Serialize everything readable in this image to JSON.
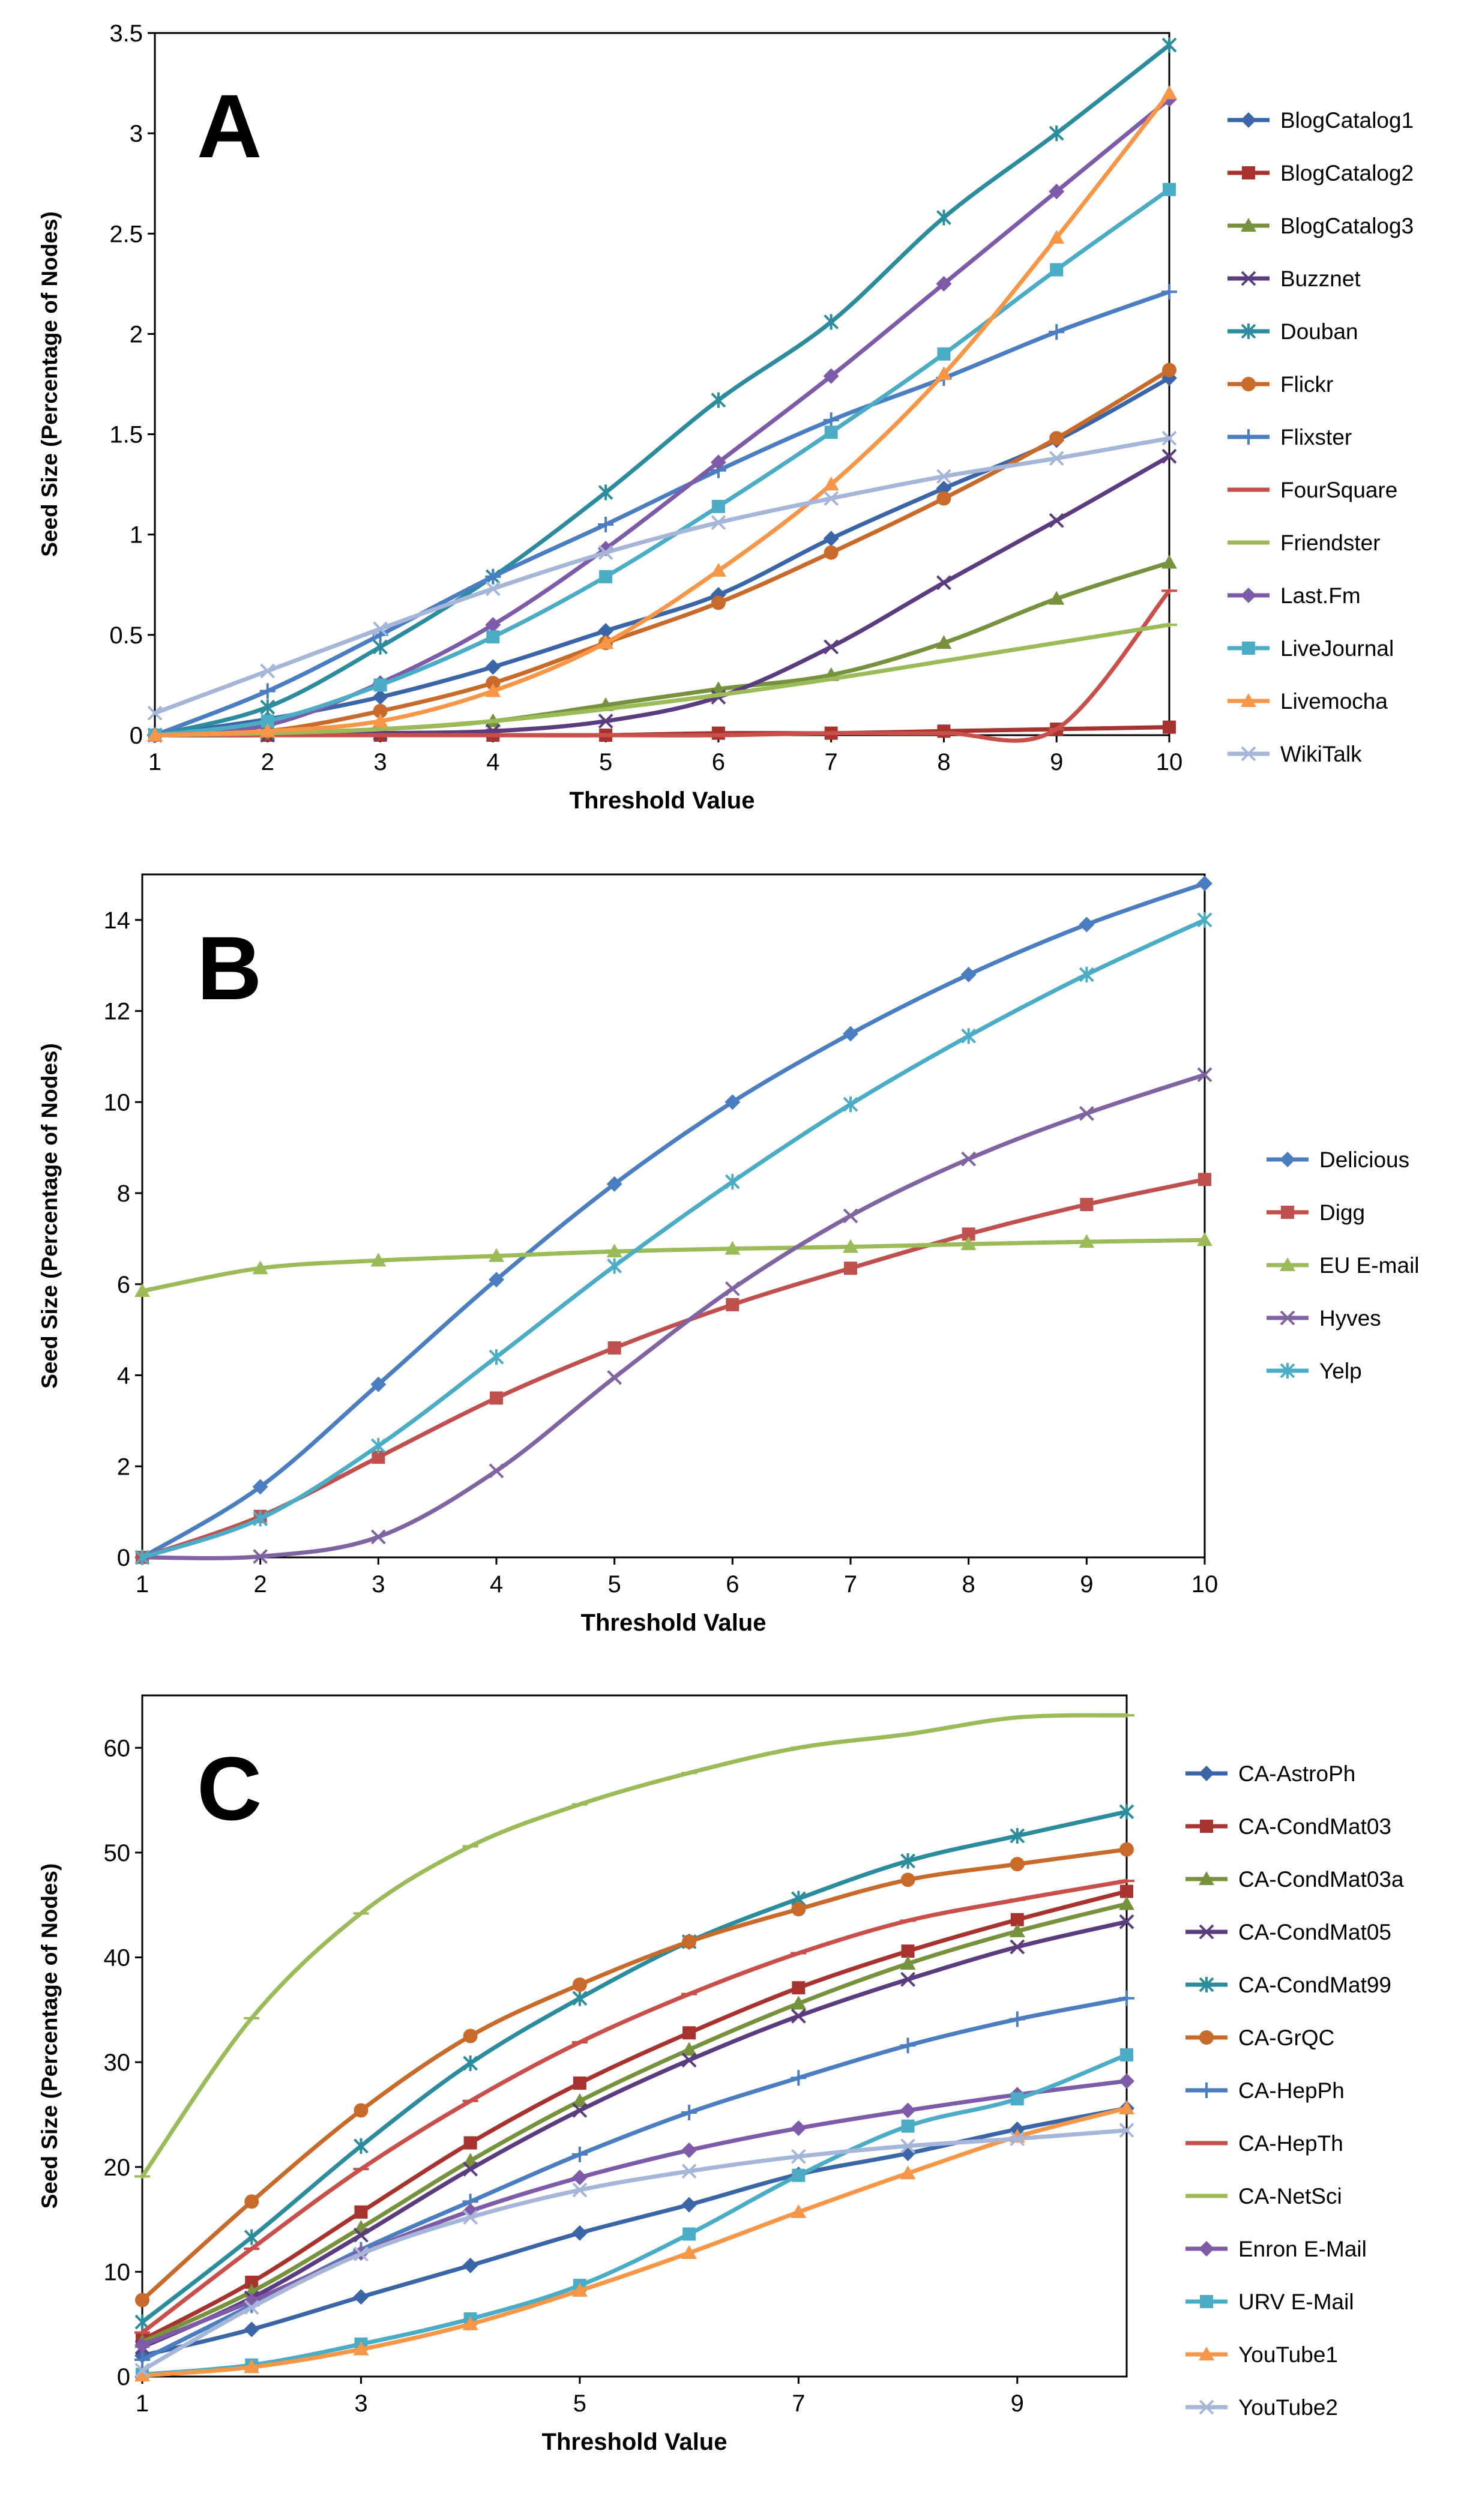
{
  "chart_data": [
    {
      "panel_label": "A",
      "type": "line",
      "title": "",
      "xlabel": "Threshold Value",
      "ylabel": "Seed Size (Percentage of Nodes)",
      "x": [
        1,
        2,
        3,
        4,
        5,
        6,
        7,
        8,
        9,
        10
      ],
      "xticks": [
        "1",
        "2",
        "3",
        "4",
        "5",
        "6",
        "7",
        "8",
        "9",
        "10"
      ],
      "ylim": [
        0,
        3.5
      ],
      "yticks": [
        "0",
        "0.5",
        "1",
        "1.5",
        "2",
        "2.5",
        "3",
        "3.5"
      ],
      "legend_position": "right",
      "series": [
        {
          "name": "BlogCatalog1",
          "color": "#3A66A8",
          "marker": "diamond",
          "values": [
            0,
            0.08,
            0.19,
            0.34,
            0.52,
            0.7,
            0.98,
            1.23,
            1.47,
            1.78
          ]
        },
        {
          "name": "BlogCatalog2",
          "color": "#A8322E",
          "marker": "square",
          "values": [
            0,
            0,
            0,
            0,
            0,
            0.01,
            0.01,
            0.02,
            0.03,
            0.04
          ]
        },
        {
          "name": "BlogCatalog3",
          "color": "#77923C",
          "marker": "triangle",
          "values": [
            0,
            0.01,
            0.03,
            0.07,
            0.15,
            0.23,
            0.3,
            0.46,
            0.68,
            0.86
          ]
        },
        {
          "name": "Buzznet",
          "color": "#5B3D7F",
          "marker": "x",
          "values": [
            0,
            0,
            0.01,
            0.02,
            0.07,
            0.19,
            0.44,
            0.76,
            1.07,
            1.39
          ]
        },
        {
          "name": "Douban",
          "color": "#2A8C9C",
          "marker": "star",
          "values": [
            0,
            0.14,
            0.44,
            0.79,
            1.21,
            1.67,
            2.06,
            2.58,
            3.0,
            3.44
          ]
        },
        {
          "name": "Flickr",
          "color": "#C86B2A",
          "marker": "circle",
          "values": [
            0,
            0.02,
            0.12,
            0.26,
            0.46,
            0.66,
            0.91,
            1.18,
            1.48,
            1.82
          ]
        },
        {
          "name": "Flixster",
          "color": "#4A7EC0",
          "marker": "plus",
          "values": [
            0,
            0.22,
            0.5,
            0.79,
            1.05,
            1.32,
            1.57,
            1.78,
            2.01,
            2.21
          ]
        },
        {
          "name": "FourSquare",
          "color": "#C94F4B",
          "marker": "dash",
          "values": [
            0,
            0,
            0,
            0,
            0,
            0,
            0.01,
            0.01,
            0.03,
            0.72
          ]
        },
        {
          "name": "Friendster",
          "color": "#9BBB59",
          "marker": "dash",
          "values": [
            0,
            0.01,
            0.03,
            0.07,
            0.13,
            0.2,
            0.28,
            0.37,
            0.46,
            0.55
          ]
        },
        {
          "name": "Last.Fm",
          "color": "#7E5BA8",
          "marker": "diamond",
          "values": [
            0,
            0.05,
            0.26,
            0.55,
            0.93,
            1.36,
            1.79,
            2.25,
            2.71,
            3.17
          ]
        },
        {
          "name": "LiveJournal",
          "color": "#4BACC6",
          "marker": "square",
          "values": [
            0,
            0.07,
            0.25,
            0.49,
            0.79,
            1.14,
            1.51,
            1.9,
            2.32,
            2.72
          ]
        },
        {
          "name": "Livemocha",
          "color": "#F79646",
          "marker": "triangle",
          "values": [
            0,
            0.02,
            0.07,
            0.22,
            0.46,
            0.82,
            1.25,
            1.8,
            2.48,
            3.2
          ]
        },
        {
          "name": "WikiTalk",
          "color": "#A6B6D8",
          "marker": "x",
          "values": [
            0.11,
            0.32,
            0.53,
            0.73,
            0.91,
            1.06,
            1.18,
            1.29,
            1.38,
            1.48
          ]
        }
      ]
    },
    {
      "panel_label": "B",
      "type": "line",
      "title": "",
      "xlabel": "Threshold Value",
      "ylabel": "Seed Size (Percentage of Nodes)",
      "x": [
        1,
        2,
        3,
        4,
        5,
        6,
        7,
        8,
        9,
        10
      ],
      "xticks": [
        "1",
        "2",
        "3",
        "4",
        "5",
        "6",
        "7",
        "8",
        "9",
        "10"
      ],
      "ylim": [
        0,
        15
      ],
      "yticks": [
        "0",
        "2",
        "4",
        "6",
        "8",
        "10",
        "12",
        "14"
      ],
      "legend_position": "right",
      "series": [
        {
          "name": "Delicious",
          "color": "#4A7EC0",
          "marker": "diamond",
          "values": [
            0,
            1.55,
            3.8,
            6.1,
            8.2,
            10.0,
            11.5,
            12.8,
            13.9,
            14.8
          ]
        },
        {
          "name": "Digg",
          "color": "#C0504D",
          "marker": "square",
          "values": [
            0,
            0.9,
            2.2,
            3.5,
            4.6,
            5.55,
            6.35,
            7.1,
            7.75,
            8.3
          ]
        },
        {
          "name": "EU E-mail",
          "color": "#9BBB59",
          "marker": "triangle",
          "values": [
            5.85,
            6.35,
            6.52,
            6.62,
            6.72,
            6.78,
            6.82,
            6.88,
            6.93,
            6.97
          ]
        },
        {
          "name": "Hyves",
          "color": "#8064A2",
          "marker": "x",
          "values": [
            0,
            0.02,
            0.45,
            1.9,
            3.95,
            5.9,
            7.5,
            8.75,
            9.75,
            10.6
          ]
        },
        {
          "name": "Yelp",
          "color": "#4BACC6",
          "marker": "star",
          "values": [
            0,
            0.85,
            2.45,
            4.4,
            6.4,
            8.25,
            9.95,
            11.45,
            12.8,
            14.0
          ]
        }
      ]
    },
    {
      "panel_label": "C",
      "type": "line",
      "title": "",
      "xlabel": "Threshold Value",
      "ylabel": "Seed Size (Percentage of Nodes)",
      "x": [
        1,
        2,
        3,
        4,
        5,
        6,
        7,
        8,
        9,
        10
      ],
      "xticks": [
        "1",
        "3",
        "5",
        "7",
        "9"
      ],
      "ylim": [
        0,
        65
      ],
      "yticks": [
        "0",
        "10",
        "20",
        "30",
        "40",
        "50",
        "60"
      ],
      "legend_position": "right",
      "series": [
        {
          "name": "CA-AstroPh",
          "color": "#3A66A8",
          "marker": "diamond",
          "values": [
            2,
            4.5,
            7.6,
            10.6,
            13.7,
            16.4,
            19.3,
            21.3,
            23.6,
            25.6
          ]
        },
        {
          "name": "CA-CondMat03",
          "color": "#A8322E",
          "marker": "square",
          "values": [
            3.5,
            9,
            15.7,
            22.3,
            28,
            32.8,
            37.1,
            40.6,
            43.6,
            46.3
          ]
        },
        {
          "name": "CA-CondMat03a",
          "color": "#77923C",
          "marker": "triangle",
          "values": [
            3.3,
            8.1,
            14.2,
            20.6,
            26.3,
            31.2,
            35.6,
            39.4,
            42.5,
            45.1
          ]
        },
        {
          "name": "CA-CondMat05",
          "color": "#5B3D7F",
          "marker": "x",
          "values": [
            2.8,
            7.5,
            13.5,
            19.8,
            25.4,
            30.2,
            34.4,
            37.9,
            41,
            43.4
          ]
        },
        {
          "name": "CA-CondMat99",
          "color": "#2A8C9C",
          "marker": "star",
          "values": [
            5.2,
            13.3,
            22,
            29.9,
            36.1,
            41.5,
            45.6,
            49.2,
            51.6,
            53.9
          ]
        },
        {
          "name": "CA-GrQC",
          "color": "#C86B2A",
          "marker": "circle",
          "values": [
            7.3,
            16.7,
            25.4,
            32.5,
            37.4,
            41.5,
            44.6,
            47.4,
            48.9,
            50.3
          ]
        },
        {
          "name": "CA-HepPh",
          "color": "#4A7EC0",
          "marker": "plus",
          "values": [
            1.6,
            6.8,
            12.1,
            16.7,
            21.2,
            25.2,
            28.5,
            31.6,
            34.1,
            36.1
          ]
        },
        {
          "name": "CA-HepTh",
          "color": "#C94F4B",
          "marker": "dash",
          "values": [
            4.2,
            12.2,
            19.8,
            26.3,
            31.9,
            36.5,
            40.4,
            43.5,
            45.5,
            47.3
          ]
        },
        {
          "name": "CA-NetSci",
          "color": "#9BBB59",
          "marker": "dash",
          "values": [
            19.1,
            34.2,
            44.2,
            50.6,
            54.6,
            57.6,
            60,
            61.3,
            62.9,
            63.1
          ]
        },
        {
          "name": "Enron E-Mail",
          "color": "#7E5BA8",
          "marker": "diamond",
          "values": [
            3,
            7.2,
            11.8,
            15.8,
            19,
            21.6,
            23.7,
            25.4,
            26.9,
            28.2
          ]
        },
        {
          "name": "URV E-Mail",
          "color": "#4BACC6",
          "marker": "square",
          "values": [
            0.2,
            1.1,
            3.1,
            5.5,
            8.7,
            13.6,
            19.2,
            23.9,
            26.5,
            30.7
          ]
        },
        {
          "name": "YouTube1",
          "color": "#F79646",
          "marker": "triangle",
          "values": [
            0.1,
            0.9,
            2.6,
            5,
            8.2,
            11.8,
            15.7,
            19.4,
            22.9,
            25.6
          ]
        },
        {
          "name": "YouTube2",
          "color": "#A6B6D8",
          "marker": "x",
          "values": [
            0.6,
            6.6,
            11.7,
            15.2,
            17.8,
            19.6,
            21,
            22,
            22.7,
            23.5
          ]
        }
      ]
    }
  ]
}
